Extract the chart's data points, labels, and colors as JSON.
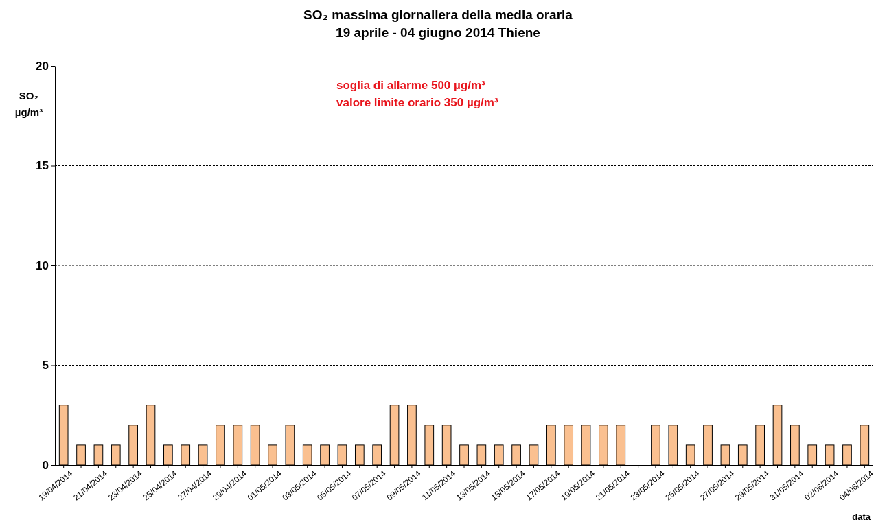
{
  "chart_data": {
    "type": "bar",
    "title": "SO₂ massima giornaliera della media oraria",
    "subtitle": "19 aprile - 04 giugno 2014 Thiene",
    "ylabel": "SO₂ µg/m³",
    "xlabel": "data",
    "annotations": [
      "soglia di allarme 500 µg/m³",
      "valore limite orario 350 µg/m³"
    ],
    "categories": [
      "19/04/2014",
      null,
      "21/04/2014",
      null,
      "23/04/2014",
      null,
      "25/04/2014",
      null,
      "27/04/2014",
      null,
      "29/04/2014",
      null,
      "01/05/2014",
      null,
      "03/05/2014",
      null,
      "05/05/2014",
      null,
      "07/05/2014",
      null,
      "09/05/2014",
      null,
      "11/05/2014",
      null,
      "13/05/2014",
      null,
      "15/05/2014",
      null,
      "17/05/2014",
      null,
      "19/05/2014",
      null,
      "21/05/2014",
      null,
      "23/05/2014",
      null,
      "25/05/2014",
      null,
      "27/05/2014",
      null,
      "29/05/2014",
      null,
      "31/05/2014",
      null,
      "02/06/2014",
      null,
      "04/06/2014"
    ],
    "values": [
      3,
      1,
      1,
      1,
      2,
      3,
      1,
      1,
      1,
      2,
      2,
      2,
      1,
      2,
      1,
      1,
      1,
      1,
      1,
      3,
      3,
      2,
      2,
      1,
      1,
      1,
      1,
      1,
      2,
      2,
      2,
      2,
      2,
      null,
      2,
      2,
      1,
      2,
      1,
      1,
      2,
      3,
      2,
      1,
      1,
      1,
      2
    ],
    "color": "#fac090",
    "ylim": [
      0,
      20
    ],
    "yticks": [
      0,
      5,
      10,
      15,
      20
    ],
    "grid": "y"
  }
}
